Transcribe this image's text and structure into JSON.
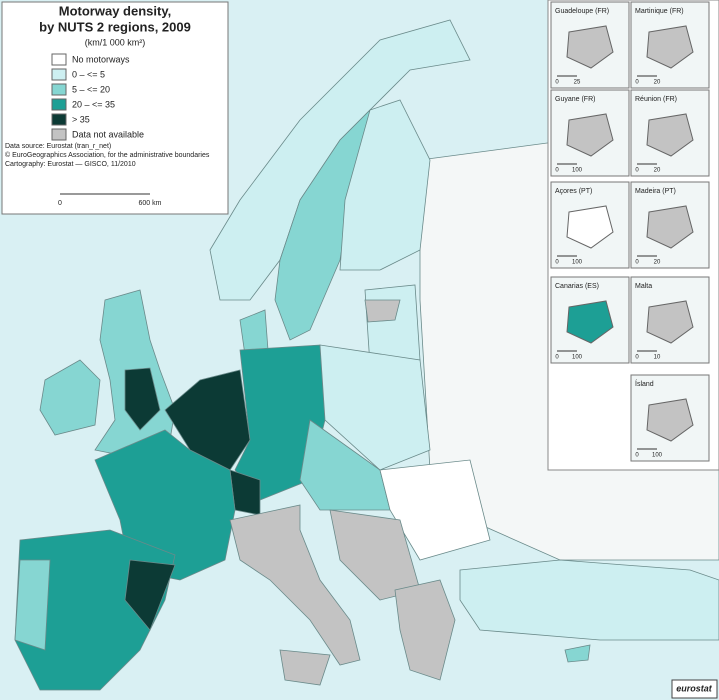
{
  "title": "Motorway density,",
  "subtitle": "by NUTS 2 regions, 2009",
  "unit": "(km/1 000 km²)",
  "legend": [
    {
      "label": "No motorways",
      "color": "#ffffff"
    },
    {
      "label": "0 – <= 5",
      "color": "#cdeff1"
    },
    {
      "label": "5 – <= 20",
      "color": "#86d6d2"
    },
    {
      "label": "20 – <= 35",
      "color": "#1d9f95"
    },
    {
      "label": "> 35",
      "color": "#0c3a35"
    },
    {
      "label": "Data not available",
      "color": "#c3c3c3"
    }
  ],
  "sources": [
    "Data source: Eurostat (tran_r_net)",
    "© EuroGeographics Association, for the administrative boundaries",
    "Cartography: Eurostat — GISCO, 11/2010"
  ],
  "scale_bar": [
    "0",
    "600 km"
  ],
  "insets": [
    {
      "name": "Guadeloupe (FR)",
      "scale": [
        "0",
        "25"
      ]
    },
    {
      "name": "Martinique (FR)",
      "scale": [
        "0",
        "20"
      ]
    },
    {
      "name": "Guyane (FR)",
      "scale": [
        "0",
        "100"
      ]
    },
    {
      "name": "Réunion (FR)",
      "scale": [
        "0",
        "20"
      ]
    },
    {
      "name": "Açores (PT)",
      "scale": [
        "0",
        "100"
      ]
    },
    {
      "name": "Madeira (PT)",
      "scale": [
        "0",
        "20"
      ]
    },
    {
      "name": "Canarias (ES)",
      "scale": [
        "0",
        "100"
      ]
    },
    {
      "name": "Malta",
      "scale": [
        "0",
        "10"
      ]
    },
    {
      "name": "Ísland",
      "scale": [
        "0",
        "100"
      ]
    }
  ],
  "logo": "eurostat"
}
